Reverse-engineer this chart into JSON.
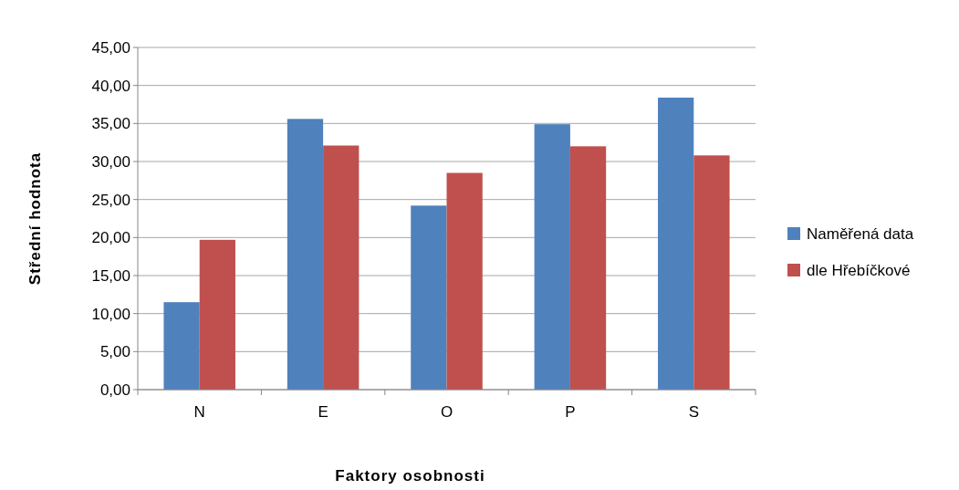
{
  "chart_data": {
    "type": "bar",
    "xlabel": "Faktory osobnosti",
    "ylabel": "Střední hodnota",
    "categories": [
      "N",
      "E",
      "O",
      "P",
      "S"
    ],
    "series": [
      {
        "name": "Naměřená data",
        "color": "#4f81bd",
        "values": [
          11.5,
          35.6,
          24.2,
          34.9,
          38.4
        ]
      },
      {
        "name": "dle Hřebíčkové",
        "color": "#c0504d",
        "values": [
          19.7,
          32.1,
          28.5,
          32.0,
          30.8
        ]
      }
    ],
    "ylim": [
      0,
      45
    ],
    "yticks": [
      {
        "value": 0,
        "label": "0,00"
      },
      {
        "value": 5,
        "label": "5,00"
      },
      {
        "value": 10,
        "label": "10,00"
      },
      {
        "value": 15,
        "label": "15,00"
      },
      {
        "value": 20,
        "label": "20,00"
      },
      {
        "value": 25,
        "label": "25,00"
      },
      {
        "value": 30,
        "label": "30,00"
      },
      {
        "value": 35,
        "label": "35,00"
      },
      {
        "value": 40,
        "label": "40,00"
      },
      {
        "value": 45,
        "label": "45,00"
      }
    ],
    "grid": "y",
    "legend": "right"
  }
}
